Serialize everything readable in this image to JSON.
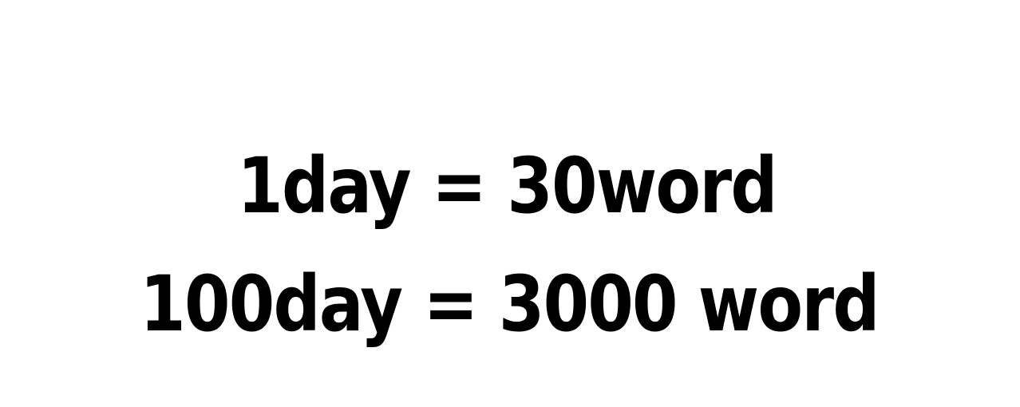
{
  "slide": {
    "line_1": "1day = 30word",
    "line_2": "100day = 3000 word"
  },
  "colors": {
    "background": "#ffffff",
    "text": "#000000"
  }
}
